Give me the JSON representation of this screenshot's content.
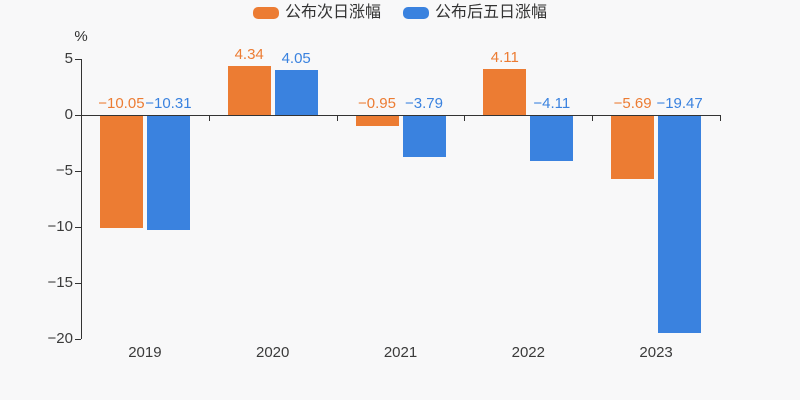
{
  "background_color": "#f8f8f9",
  "legend": {
    "items": [
      {
        "label": "公布次日涨幅",
        "color": "#ec7c33"
      },
      {
        "label": "公布后五日涨幅",
        "color": "#3a82df"
      }
    ]
  },
  "y_axis": {
    "unit_label": "%",
    "tick_labels": [
      "5",
      "0",
      "−5",
      "−10",
      "−15",
      "−20"
    ],
    "tick_values": [
      5,
      0,
      -5,
      -10,
      -15,
      -20
    ]
  },
  "x_axis": {
    "labels": [
      "2019",
      "2020",
      "2021",
      "2022",
      "2023"
    ]
  },
  "chart_data": {
    "type": "bar",
    "categories": [
      "2019",
      "2020",
      "2021",
      "2022",
      "2023"
    ],
    "series": [
      {
        "name": "公布次日涨幅",
        "color": "#ec7c33",
        "values": [
          -10.05,
          4.34,
          -0.95,
          4.11,
          -5.69
        ],
        "labels": [
          "−10.05",
          "4.34",
          "−0.95",
          "4.11",
          "−5.69"
        ]
      },
      {
        "name": "公布后五日涨幅",
        "color": "#3a82df",
        "values": [
          -10.31,
          4.05,
          -3.79,
          -4.11,
          -19.47
        ],
        "labels": [
          "−10.31",
          "4.05",
          "−3.79",
          "−4.11",
          "−19.47"
        ]
      }
    ],
    "title": "",
    "xlabel": "",
    "ylabel": "%",
    "ylim": [
      -20,
      5
    ],
    "grid": false,
    "legend_position": "top"
  },
  "style_colors": {
    "axis": "#333333",
    "tick_text": "#3a3a3a"
  }
}
